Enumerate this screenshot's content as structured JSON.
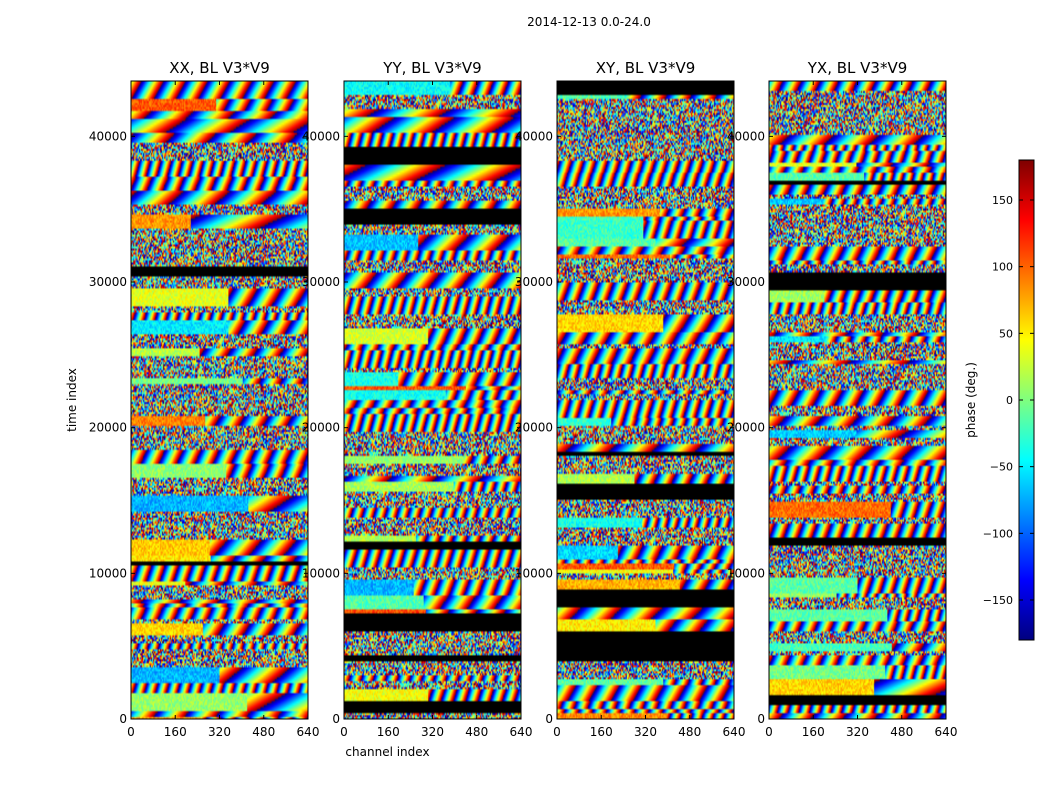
{
  "figure": {
    "suptitle": "2014-12-13 0.0-24.0"
  },
  "colorbar": {
    "label": "phase (deg.)",
    "range": [
      -180,
      180
    ],
    "ticks": [
      -150,
      -100,
      -50,
      0,
      50,
      100,
      150
    ],
    "tick_labels": [
      "−150",
      "−100",
      "−50",
      "0",
      "50",
      "100",
      "150"
    ],
    "colormap": [
      "#00007f",
      "#0000ff",
      "#007fff",
      "#00ffff",
      "#7fff7f",
      "#ffff00",
      "#ff7f00",
      "#ff0000",
      "#7f0000"
    ]
  },
  "chart_data": [
    {
      "type": "heatmap",
      "title": "XX, BL V3*V9",
      "xlabel": "",
      "ylabel": "time index",
      "xlim": [
        0,
        640
      ],
      "ylim": [
        0,
        43800
      ],
      "xticks": [
        0,
        160,
        320,
        480,
        640
      ],
      "yticks": [
        0,
        10000,
        20000,
        30000,
        40000
      ],
      "value": "phase (deg.)"
    },
    {
      "type": "heatmap",
      "title": "YY, BL V3*V9",
      "xlabel": "channel index",
      "ylabel": "",
      "xlim": [
        0,
        640
      ],
      "ylim": [
        0,
        43800
      ],
      "xticks": [
        0,
        160,
        320,
        480,
        640
      ],
      "yticks": [
        0,
        10000,
        20000,
        30000,
        40000
      ],
      "value": "phase (deg.)"
    },
    {
      "type": "heatmap",
      "title": "XY, BL V3*V9",
      "xlabel": "",
      "ylabel": "",
      "xlim": [
        0,
        640
      ],
      "ylim": [
        0,
        43800
      ],
      "xticks": [
        0,
        160,
        320,
        480,
        640
      ],
      "yticks": [
        0,
        10000,
        20000,
        30000,
        40000
      ],
      "value": "phase (deg.)"
    },
    {
      "type": "heatmap",
      "title": "YX, BL V3*V9",
      "xlabel": "",
      "ylabel": "",
      "xlim": [
        0,
        640
      ],
      "ylim": [
        0,
        43800
      ],
      "xticks": [
        0,
        160,
        320,
        480,
        640
      ],
      "yticks": [
        0,
        10000,
        20000,
        30000,
        40000
      ],
      "value": "phase (deg.)"
    }
  ]
}
